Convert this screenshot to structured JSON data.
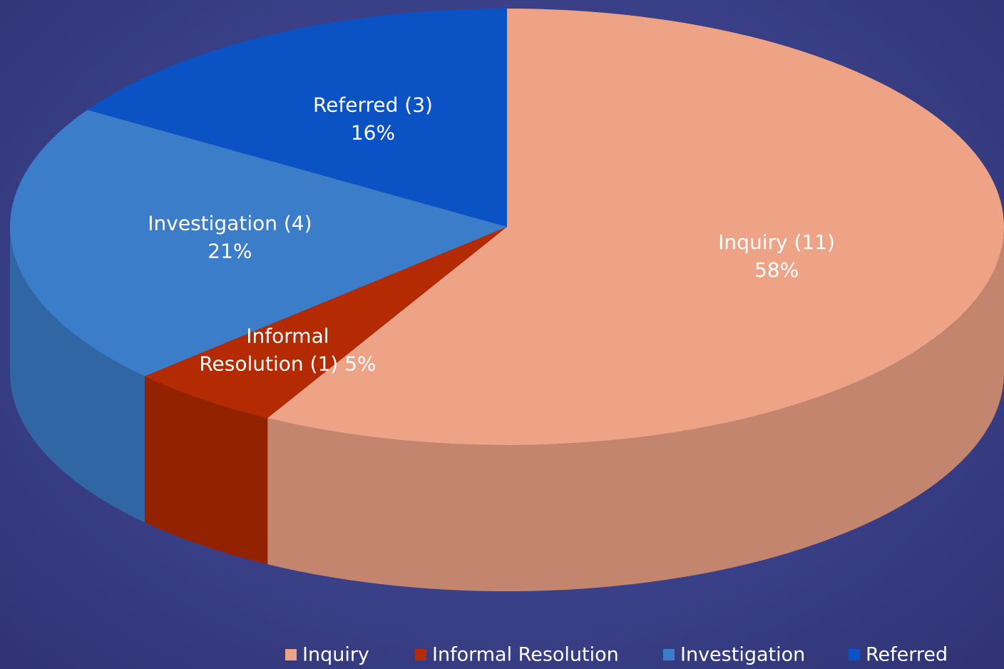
{
  "chart_data": {
    "type": "pie",
    "categories": [
      "Inquiry",
      "Informal Resolution",
      "Investigation",
      "Referred"
    ],
    "values": [
      58,
      5,
      21,
      16
    ],
    "value_labels": [
      [
        "Inquiry (11)",
        "58%"
      ],
      [
        "Informal",
        "Resolution (1) 5%"
      ],
      [
        "Investigation (4)",
        "21%"
      ],
      [
        "Referred (3)",
        "16%"
      ]
    ],
    "colors": [
      "#eea386",
      "#b42a02",
      "#3b7dc9",
      "#0b52c4"
    ],
    "legend": "bottom"
  }
}
